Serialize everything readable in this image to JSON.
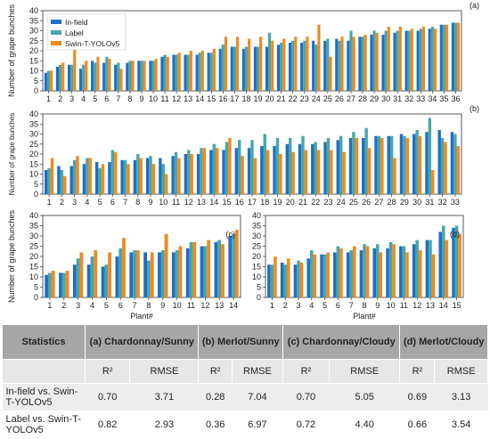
{
  "legend": {
    "entries": [
      "In-field",
      "Label",
      "Swin-T-YOLOv5"
    ],
    "colors": [
      "#1f6fc5",
      "#4aa6a8",
      "#ef8a1f"
    ]
  },
  "chart_data": [
    {
      "type": "bar",
      "panel_label": "(a)",
      "ylabel": "Number of grape bunches",
      "xlabel": "",
      "ylim": [
        0,
        40
      ],
      "yticks": [
        0,
        5,
        10,
        15,
        20,
        25,
        30,
        35,
        40
      ],
      "categories": [
        "1",
        "2",
        "3",
        "4",
        "5",
        "6",
        "7",
        "8",
        "9",
        "10",
        "11",
        "12",
        "13",
        "14",
        "15",
        "16",
        "17",
        "18",
        "19",
        "20",
        "21",
        "22",
        "23",
        "24",
        "25",
        "26",
        "27",
        "28",
        "29",
        "30",
        "31",
        "32",
        "33",
        "34",
        "35",
        "36"
      ],
      "series": [
        {
          "name": "In-field",
          "values": [
            9,
            12,
            13,
            11,
            15,
            14,
            13,
            14,
            15,
            15,
            17,
            18,
            18,
            18,
            19,
            21,
            22,
            21,
            22,
            22,
            23,
            24,
            24,
            25,
            25,
            26,
            25,
            27,
            28,
            28,
            29,
            30,
            30,
            31,
            33,
            34
          ]
        },
        {
          "name": "Label",
          "values": [
            10,
            13,
            13,
            13,
            14,
            17,
            14,
            15,
            15,
            15,
            18,
            18,
            18,
            19,
            19,
            23,
            22,
            22,
            22,
            29,
            24,
            25,
            25,
            23,
            26,
            25,
            30,
            27,
            30,
            30,
            30,
            30,
            31,
            32,
            33,
            34
          ]
        },
        {
          "name": "Swin-T-YOLOv5",
          "values": [
            10,
            14,
            21,
            15,
            17,
            16,
            11,
            15,
            15,
            16,
            17,
            19,
            20,
            20,
            21,
            27,
            27,
            26,
            27,
            25,
            26,
            27,
            27,
            33,
            17,
            27,
            27,
            28,
            29,
            32,
            32,
            31,
            32,
            31,
            33,
            34
          ]
        }
      ]
    },
    {
      "type": "bar",
      "panel_label": "(b)",
      "ylabel": "Number of grape bunches",
      "xlabel": "",
      "ylim": [
        0,
        40
      ],
      "yticks": [
        0,
        5,
        10,
        15,
        20,
        25,
        30,
        35,
        40
      ],
      "categories": [
        "1",
        "2",
        "3",
        "4",
        "5",
        "6",
        "7",
        "8",
        "9",
        "10",
        "11",
        "12",
        "13",
        "14",
        "15",
        "16",
        "17",
        "18",
        "19",
        "20",
        "21",
        "22",
        "23",
        "24",
        "25",
        "26",
        "27",
        "28",
        "29",
        "30",
        "31",
        "32",
        "33"
      ],
      "series": [
        {
          "name": "In-field",
          "values": [
            12,
            14,
            14,
            15,
            16,
            16,
            17,
            17,
            18,
            18,
            19,
            20,
            20,
            22,
            22,
            23,
            23,
            24,
            24,
            25,
            25,
            25,
            26,
            27,
            28,
            28,
            29,
            29,
            30,
            30,
            31,
            32,
            31
          ]
        },
        {
          "name": "Label",
          "values": [
            13,
            12,
            17,
            18,
            13,
            22,
            17,
            20,
            19,
            15,
            21,
            22,
            23,
            25,
            26,
            27,
            27,
            30,
            28,
            28,
            29,
            26,
            28,
            29,
            31,
            33,
            29,
            29,
            29,
            32,
            38,
            28,
            30
          ]
        },
        {
          "name": "Swin-T-YOLOv5",
          "values": [
            18,
            9,
            19,
            18,
            15,
            21,
            15,
            18,
            15,
            10,
            18,
            20,
            23,
            23,
            28,
            19,
            18,
            22,
            20,
            21,
            22,
            22,
            22,
            21,
            28,
            23,
            28,
            18,
            28,
            29,
            12,
            26,
            24
          ]
        }
      ]
    },
    {
      "type": "bar",
      "panel_label": "(c)",
      "ylabel": "Number of grape bunches",
      "xlabel": "Plant#",
      "ylim": [
        0,
        40
      ],
      "yticks": [
        0,
        5,
        10,
        15,
        20,
        25,
        30,
        35,
        40
      ],
      "categories": [
        "1",
        "2",
        "3",
        "4",
        "5",
        "6",
        "7",
        "8",
        "9",
        "10",
        "11",
        "12",
        "13",
        "14"
      ],
      "series": [
        {
          "name": "In-field",
          "values": [
            11,
            12,
            16,
            16,
            15,
            20,
            22,
            22,
            22,
            22,
            24,
            25,
            27,
            30
          ]
        },
        {
          "name": "Label",
          "values": [
            12,
            12,
            19,
            20,
            16,
            24,
            23,
            18,
            23,
            23,
            27,
            25,
            28,
            31
          ]
        },
        {
          "name": "Swin-T-YOLOv5",
          "values": [
            13,
            13,
            22,
            23,
            22,
            29,
            23,
            22,
            31,
            25,
            27,
            28,
            26,
            33
          ]
        }
      ]
    },
    {
      "type": "bar",
      "panel_label": "(d)",
      "ylabel": "",
      "xlabel": "Plant#",
      "ylim": [
        0,
        40
      ],
      "yticks": [
        0,
        5,
        10,
        15,
        20,
        25,
        30,
        35,
        40
      ],
      "categories": [
        "1",
        "2",
        "3",
        "4",
        "5",
        "6",
        "7",
        "8",
        "9",
        "10",
        "11",
        "12",
        "13",
        "14",
        "15"
      ],
      "series": [
        {
          "name": "In-field",
          "values": [
            16,
            17,
            16,
            19,
            21,
            22,
            22,
            23,
            24,
            24,
            25,
            26,
            28,
            32,
            34
          ]
        },
        {
          "name": "Label",
          "values": [
            16,
            16,
            18,
            23,
            21,
            25,
            23,
            26,
            26,
            27,
            25,
            28,
            28,
            35,
            35
          ]
        },
        {
          "name": "Swin-T-YOLOv5",
          "values": [
            20,
            19,
            17,
            21,
            22,
            24,
            25,
            25,
            22,
            26,
            22,
            23,
            21,
            28,
            31
          ]
        }
      ]
    }
  ],
  "table": {
    "header": {
      "statistics": "Statistics",
      "groups": [
        "(a) Chardonnay/Sunny",
        "(b) Merlot/Sunny",
        "(c) Chardonnay/Cloudy",
        "(d) Merlot/Cloudy"
      ]
    },
    "sub": [
      "R²",
      "RMSE",
      "R²",
      "RMSE",
      "R²",
      "RMSE",
      "R²",
      "RMSE"
    ],
    "rows": [
      {
        "label": "In-field vs. Swin-T-YOLOv5",
        "values": [
          "0.70",
          "3.71",
          "0.28",
          "7.04",
          "0.70",
          "5.05",
          "0.69",
          "3.13"
        ]
      },
      {
        "label": "Label vs. Swin-T-YOLOv5",
        "values": [
          "0.82",
          "2.93",
          "0.36",
          "6.97",
          "0.72",
          "4.40",
          "0.66",
          "3.54"
        ]
      }
    ]
  }
}
